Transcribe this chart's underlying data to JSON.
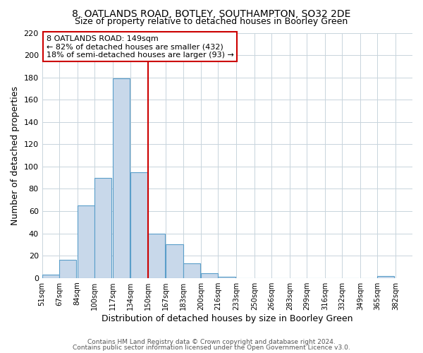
{
  "title": "8, OATLANDS ROAD, BOTLEY, SOUTHAMPTON, SO32 2DE",
  "subtitle": "Size of property relative to detached houses in Boorley Green",
  "xlabel": "Distribution of detached houses by size in Boorley Green",
  "ylabel": "Number of detached properties",
  "bar_left_edges": [
    51,
    67,
    84,
    100,
    117,
    134,
    150,
    167,
    183,
    200,
    216,
    233,
    250,
    266,
    283,
    299,
    316,
    332,
    349,
    365
  ],
  "bar_heights": [
    3,
    16,
    65,
    90,
    179,
    95,
    40,
    30,
    13,
    4,
    1,
    0,
    0,
    0,
    0,
    0,
    0,
    0,
    0,
    2
  ],
  "bin_width": 16,
  "bar_color": "#c8d8ea",
  "bar_edge_color": "#5a9ec9",
  "vline_x": 150,
  "vline_color": "#cc0000",
  "tick_labels": [
    "51sqm",
    "67sqm",
    "84sqm",
    "100sqm",
    "117sqm",
    "134sqm",
    "150sqm",
    "167sqm",
    "183sqm",
    "200sqm",
    "216sqm",
    "233sqm",
    "250sqm",
    "266sqm",
    "283sqm",
    "299sqm",
    "316sqm",
    "332sqm",
    "349sqm",
    "365sqm",
    "382sqm"
  ],
  "tick_positions": [
    51,
    67,
    84,
    100,
    117,
    134,
    150,
    167,
    183,
    200,
    216,
    233,
    250,
    266,
    283,
    299,
    316,
    332,
    349,
    365,
    382
  ],
  "ylim": [
    0,
    220
  ],
  "yticks": [
    0,
    20,
    40,
    60,
    80,
    100,
    120,
    140,
    160,
    180,
    200,
    220
  ],
  "annotation_title": "8 OATLANDS ROAD: 149sqm",
  "annotation_line1": "← 82% of detached houses are smaller (432)",
  "annotation_line2": "18% of semi-detached houses are larger (93) →",
  "footer1": "Contains HM Land Registry data © Crown copyright and database right 2024.",
  "footer2": "Contains public sector information licensed under the Open Government Licence v3.0."
}
